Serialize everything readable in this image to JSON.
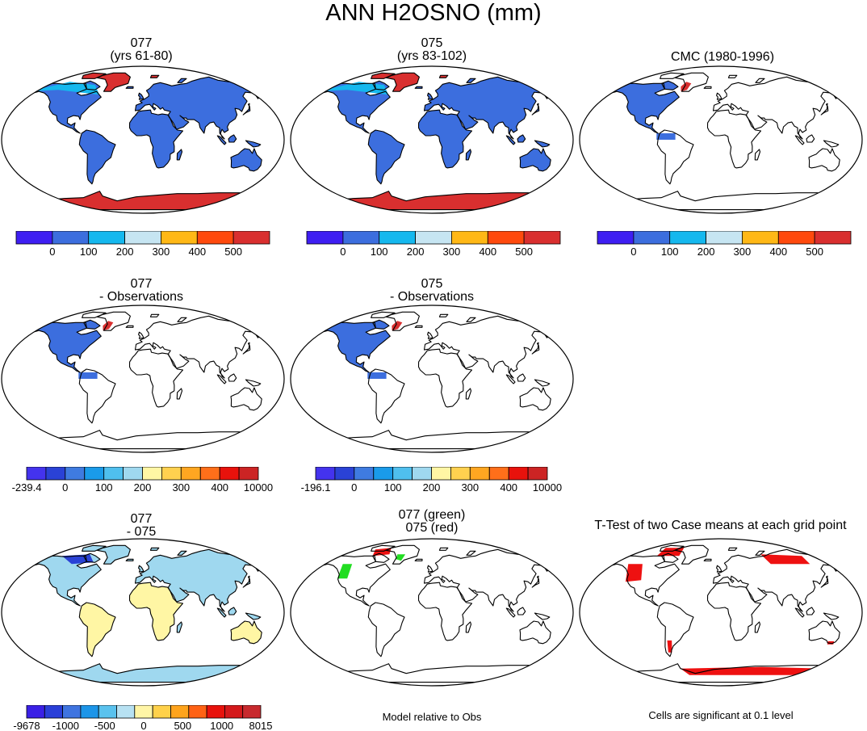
{
  "figure": {
    "title": "ANN H2OSNO (mm)",
    "colors": {
      "obs_scale": [
        "#3e1ef2",
        "#3c6ede",
        "#15b8ee",
        "#c6e5f2",
        "#ffb816",
        "#ff4a0d",
        "#d92f2f"
      ],
      "diff_scale": [
        "#4433ee",
        "#2a42d6",
        "#3f7be0",
        "#1a9be9",
        "#4fbfee",
        "#9fd8ef",
        "#fff6a4",
        "#ffd14f",
        "#ffa621",
        "#ff6f1a",
        "#e8120c",
        "#cc2424"
      ],
      "sig_scale": [
        "#3a20e6",
        "#2a3fd8",
        "#3f74e0",
        "#1c95e8",
        "#5ac2ee",
        "#b7e1f2",
        "#fff5a6",
        "#ffd14a",
        "#ffa41c",
        "#ff6214",
        "#e8120c",
        "#d4191b",
        "#c82a2e"
      ],
      "green": "#22dd22",
      "red": "#ee1111"
    }
  },
  "panels": [
    {
      "id": "p077",
      "title_lines": [
        "077",
        "(yrs 61-80)"
      ],
      "field": "model-snow"
    },
    {
      "id": "p075",
      "title_lines": [
        "075",
        "(yrs 83-102)"
      ],
      "field": "model-snow"
    },
    {
      "id": "pobs",
      "title_lines": [
        "CMC (1980-1996)"
      ],
      "field": "obs-snow"
    },
    {
      "id": "d077",
      "title_lines": [
        "077",
        "- Observations"
      ],
      "field": "model-minus-obs"
    },
    {
      "id": "d075",
      "title_lines": [
        "075",
        "- Observations"
      ],
      "field": "model-minus-obs"
    },
    {
      "id": "dmm",
      "title_lines": [
        "077",
        "- 075"
      ],
      "field": "model-minus-model"
    },
    {
      "id": "cmp",
      "title_lines": [
        "077 (green)",
        "075 (red)"
      ],
      "field": "model-rel-obs"
    },
    {
      "id": "ttest",
      "title_lines": [
        "T-Test of two Case means at each grid point"
      ],
      "field": "significance"
    }
  ],
  "colorbars": [
    {
      "id": "cb1",
      "scale": "obs_scale",
      "labels": [
        "0",
        "100",
        "200",
        "300",
        "400",
        "500"
      ]
    },
    {
      "id": "cb2",
      "scale": "obs_scale",
      "labels": [
        "0",
        "100",
        "200",
        "300",
        "400",
        "500"
      ]
    },
    {
      "id": "cb3",
      "scale": "obs_scale",
      "labels": [
        "0",
        "100",
        "200",
        "300",
        "400",
        "500"
      ]
    },
    {
      "id": "cb4",
      "scale": "diff_scale",
      "labels": [
        "-239.4",
        "0",
        "100",
        "200",
        "300",
        "400",
        "10000"
      ]
    },
    {
      "id": "cb5",
      "scale": "diff_scale",
      "labels": [
        "-196.1",
        "0",
        "100",
        "200",
        "300",
        "400",
        "10000"
      ]
    },
    {
      "id": "cb6",
      "scale": "sig_scale",
      "labels": [
        "-9678",
        "-1000",
        "-500",
        "0",
        "500",
        "1000",
        "8015"
      ]
    }
  ],
  "notes": {
    "model_rel_obs": "Model relative to Obs",
    "significance": "Cells are significant at 0.1 level"
  },
  "chart_data": [
    {
      "type": "heatmap",
      "title": "077 (yrs 61-80)",
      "scale_ticks": [
        0,
        100,
        200,
        300,
        400,
        500
      ],
      "legend": "bottom",
      "projection": "global map"
    },
    {
      "type": "heatmap",
      "title": "075 (yrs 83-102)",
      "scale_ticks": [
        0,
        100,
        200,
        300,
        400,
        500
      ],
      "legend": "bottom",
      "projection": "global map"
    },
    {
      "type": "heatmap",
      "title": "CMC (1980-1996)",
      "scale_ticks": [
        0,
        100,
        200,
        300,
        400,
        500
      ],
      "legend": "bottom",
      "projection": "global map"
    },
    {
      "type": "heatmap",
      "title": "077 - Observations",
      "scale_ticks": [
        -239.4,
        0,
        100,
        200,
        300,
        400,
        10000
      ],
      "legend": "bottom",
      "projection": "global map"
    },
    {
      "type": "heatmap",
      "title": "075 - Observations",
      "scale_ticks": [
        -196.1,
        0,
        100,
        200,
        300,
        400,
        10000
      ],
      "legend": "bottom",
      "projection": "global map"
    },
    {
      "type": "heatmap",
      "title": "077 - 075",
      "scale_ticks": [
        -9678,
        -1000,
        -500,
        0,
        500,
        1000,
        8015
      ],
      "legend": "bottom",
      "projection": "global map"
    },
    {
      "type": "heatmap",
      "title": "077 (green) 075 (red)",
      "legend": "none",
      "projection": "global map"
    },
    {
      "type": "heatmap",
      "title": "T-Test of two Case means at each grid point",
      "legend": "none",
      "projection": "global map"
    }
  ]
}
